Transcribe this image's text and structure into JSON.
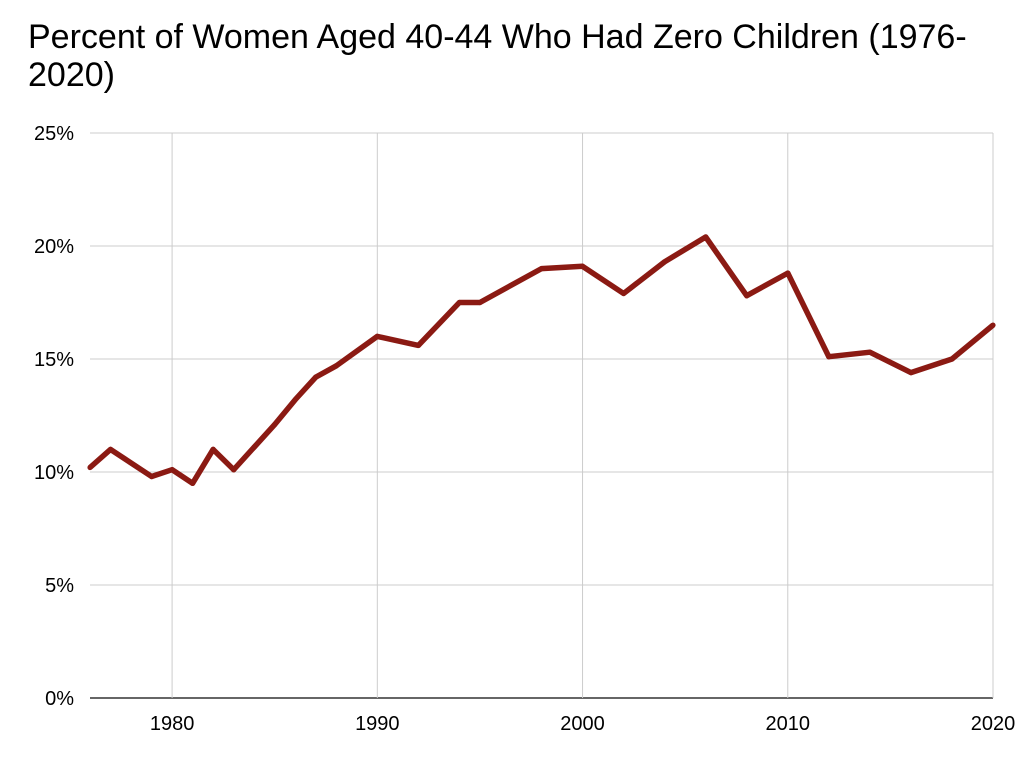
{
  "chart_data": {
    "type": "line",
    "title": "Percent of Women Aged 40-44 Who Had Zero Children (1976-2020)",
    "xlabel": "",
    "ylabel": "",
    "xlim": [
      1976,
      2020
    ],
    "ylim": [
      0,
      25
    ],
    "x_ticks": [
      1980,
      1990,
      2000,
      2010,
      2020
    ],
    "y_ticks": [
      "0%",
      "5%",
      "10%",
      "15%",
      "20%",
      "25%"
    ],
    "grid": true,
    "legend": "none",
    "line_color": "#8b1a13",
    "series": [
      {
        "x": [
          1976,
          1977,
          1979,
          1980,
          1981,
          1982,
          1983,
          1984,
          1985,
          1986,
          1987,
          1988,
          1990,
          1992,
          1994,
          1995,
          1998,
          2000,
          2002,
          2004,
          2006,
          2008,
          2010,
          2012,
          2014,
          2016,
          2018,
          2020
        ],
        "values": [
          10.2,
          11.0,
          9.8,
          10.1,
          9.5,
          11.0,
          10.1,
          11.1,
          12.1,
          13.2,
          14.2,
          14.7,
          16.0,
          15.6,
          17.5,
          17.5,
          19.0,
          19.1,
          17.9,
          19.3,
          20.4,
          17.8,
          18.8,
          15.1,
          15.3,
          14.4,
          15.0,
          16.5
        ]
      }
    ]
  }
}
